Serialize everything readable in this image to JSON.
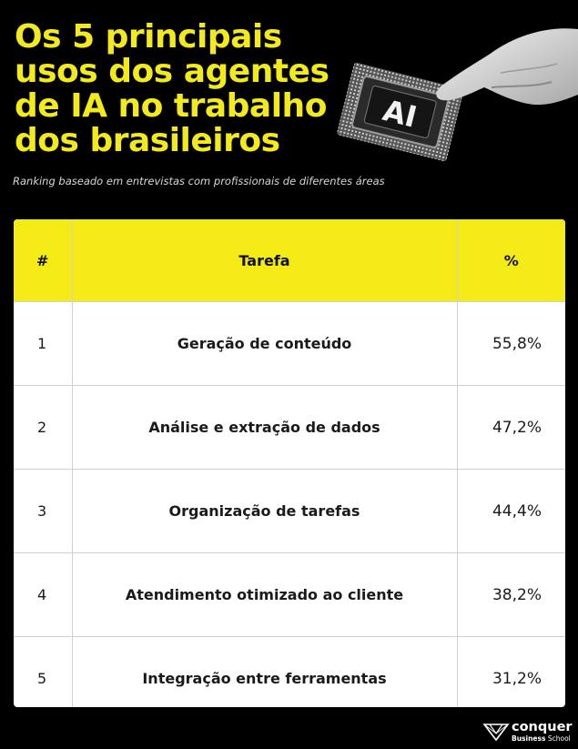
{
  "header": {
    "title_lines": [
      "Os 5 principais",
      "usos dos agentes",
      "de IA no trabalho",
      "dos brasileiros"
    ],
    "subtitle": "Ranking baseado em entrevistas com profissionais de diferentes áreas",
    "chip_label": "AI"
  },
  "chart_data": {
    "type": "table",
    "columns": [
      "#",
      "Tarefa",
      "%"
    ],
    "rows": [
      {
        "rank": "1",
        "task": "Geração de conteúdo",
        "pct": "55,8%"
      },
      {
        "rank": "2",
        "task": "Análise e extração de dados",
        "pct": "47,2%"
      },
      {
        "rank": "3",
        "task": "Organização de tarefas",
        "pct": "44,4%"
      },
      {
        "rank": "4",
        "task": "Atendimento otimizado ao cliente",
        "pct": "38,2%"
      },
      {
        "rank": "5",
        "task": "Integração entre ferramentas",
        "pct": "31,2%"
      }
    ]
  },
  "footer": {
    "brand_name": "conquer",
    "brand_sub_bold": "Business",
    "brand_sub": "School"
  },
  "colors": {
    "background": "#000000",
    "accent_yellow": "#f2ea1b",
    "table_header": "#f4ea16",
    "table_body": "#ffffff"
  },
  "icons": {
    "hero": "hand-pressing-ai-chip-icon",
    "logo": "conquer-logo-icon"
  }
}
